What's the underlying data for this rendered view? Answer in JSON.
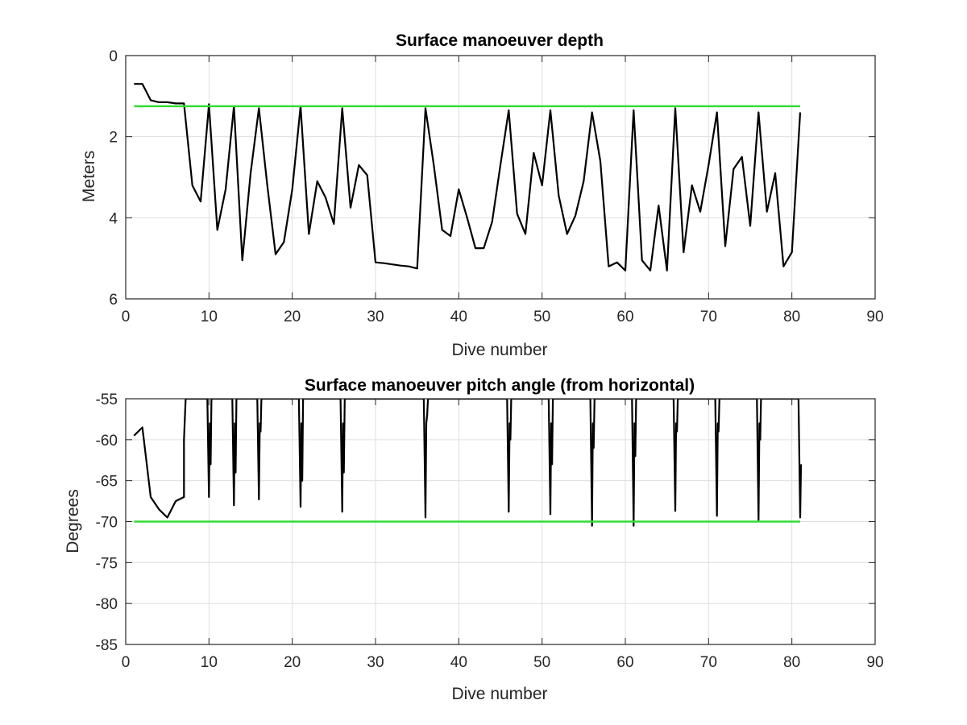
{
  "colors": {
    "background": "#ffffff",
    "data_line": "#000000",
    "threshold_line": "#33dd33",
    "grid": "#dfdfdf",
    "axes": "#262626"
  },
  "chart_data": [
    {
      "type": "line",
      "title": "Surface manoeuver depth",
      "xlabel": "Dive number",
      "ylabel": "Meters",
      "xlim": [
        0,
        90
      ],
      "ylim": [
        0,
        6
      ],
      "y_reversed": true,
      "xticks": [
        "0",
        "10",
        "20",
        "30",
        "40",
        "50",
        "60",
        "70",
        "80",
        "90"
      ],
      "yticks": [
        "0",
        "2",
        "4",
        "6"
      ],
      "grid": true,
      "series": [
        {
          "color": "#000000",
          "x": [
            1,
            2,
            3,
            4,
            5,
            6,
            7,
            8,
            9,
            10,
            11,
            12,
            13,
            14,
            15,
            16,
            17,
            18,
            19,
            20,
            21,
            22,
            23,
            24,
            25,
            26,
            27,
            28,
            29,
            30,
            31,
            32,
            33,
            34,
            35,
            36,
            37,
            38,
            39,
            40,
            41,
            42,
            43,
            44,
            45,
            46,
            47,
            48,
            49,
            50,
            51,
            52,
            53,
            54,
            55,
            56,
            57,
            58,
            59,
            60,
            61,
            62,
            63,
            64,
            65,
            66,
            67,
            68,
            69,
            70,
            71,
            72,
            73,
            74,
            75,
            76,
            77,
            78,
            79,
            80,
            81
          ],
          "y": [
            0.7,
            0.7,
            1.1,
            1.15,
            1.15,
            1.18,
            1.18,
            3.2,
            3.6,
            1.2,
            4.3,
            3.3,
            1.25,
            5.05,
            2.9,
            1.3,
            3.2,
            4.9,
            4.6,
            3.3,
            1.25,
            4.4,
            3.1,
            3.5,
            4.15,
            1.3,
            3.75,
            2.7,
            2.95,
            5.1,
            5.12,
            5.15,
            5.18,
            5.2,
            5.25,
            1.3,
            2.7,
            4.3,
            4.45,
            3.3,
            4.0,
            4.75,
            4.75,
            4.1,
            2.7,
            1.35,
            3.9,
            4.4,
            2.4,
            3.2,
            1.35,
            3.45,
            4.4,
            3.95,
            3.1,
            1.4,
            2.6,
            5.2,
            5.1,
            5.3,
            1.35,
            5.05,
            5.3,
            3.7,
            5.3,
            1.3,
            4.85,
            3.2,
            3.85,
            2.7,
            1.4,
            4.7,
            2.8,
            2.5,
            4.2,
            1.4,
            3.85,
            2.9,
            5.2,
            4.85,
            1.4
          ]
        },
        {
          "color": "#33dd33",
          "x": [
            1,
            81
          ],
          "y": [
            1.25,
            1.25
          ]
        }
      ]
    },
    {
      "type": "line",
      "title": "Surface manoeuver pitch angle (from horizontal)",
      "xlabel": "Dive number",
      "ylabel": "Degrees",
      "xlim": [
        0,
        90
      ],
      "ylim": [
        -85,
        -55
      ],
      "xticks": [
        "0",
        "10",
        "20",
        "30",
        "40",
        "50",
        "60",
        "70",
        "80",
        "90"
      ],
      "yticks": [
        "-55",
        "-60",
        "-65",
        "-70",
        "-75",
        "-80",
        "-85"
      ],
      "grid": true,
      "series": [
        {
          "color": "#000000",
          "x": [
            1,
            2,
            3,
            4,
            5,
            6,
            7,
            7,
            7.2,
            9.8,
            10,
            10.1,
            10.2,
            10.3,
            12.8,
            13,
            13.1,
            13.2,
            13.3,
            15.8,
            16,
            16.1,
            16.2,
            16.3,
            20.8,
            21,
            21.1,
            21.2,
            21.3,
            25.8,
            26,
            26.1,
            26.2,
            26.3,
            35.8,
            36,
            36.1,
            36.2,
            36.3,
            45.8,
            46,
            46.1,
            46.2,
            46.3,
            50.8,
            51,
            51.1,
            51.2,
            51.3,
            55.8,
            56,
            56.1,
            56.2,
            56.3,
            60.8,
            61,
            61.1,
            61.2,
            61.3,
            65.8,
            66,
            66.1,
            66.2,
            66.3,
            70.8,
            71,
            71.1,
            71.2,
            71.3,
            75.8,
            76,
            76.1,
            76.2,
            76.3,
            80.8,
            81,
            81.1
          ],
          "y": [
            -59.5,
            -58.5,
            -67,
            -68.5,
            -69.5,
            -67.5,
            -67,
            -60,
            -55,
            -55,
            -67,
            -58,
            -63,
            -55,
            -55,
            -68,
            -58,
            -64,
            -55,
            -55,
            -67.3,
            -58,
            -59,
            -55,
            -55,
            -68.2,
            -58,
            -65,
            -55,
            -55,
            -68.8,
            -58,
            -64,
            -55,
            -55,
            -69.5,
            -58,
            -57,
            -55,
            -55,
            -68.8,
            -58,
            -60,
            -55,
            -55,
            -69.1,
            -58,
            -63,
            -55,
            -55,
            -70.5,
            -58,
            -61,
            -55,
            -55,
            -70.5,
            -58,
            -62,
            -55,
            -55,
            -68.7,
            -58,
            -59,
            -55,
            -55,
            -69.3,
            -58,
            -59,
            -55,
            -55,
            -69.8,
            -58,
            -60,
            -55,
            -55,
            -69.5,
            -63
          ]
        },
        {
          "color": "#33dd33",
          "x": [
            1,
            81
          ],
          "y": [
            -70,
            -70
          ]
        }
      ]
    }
  ]
}
